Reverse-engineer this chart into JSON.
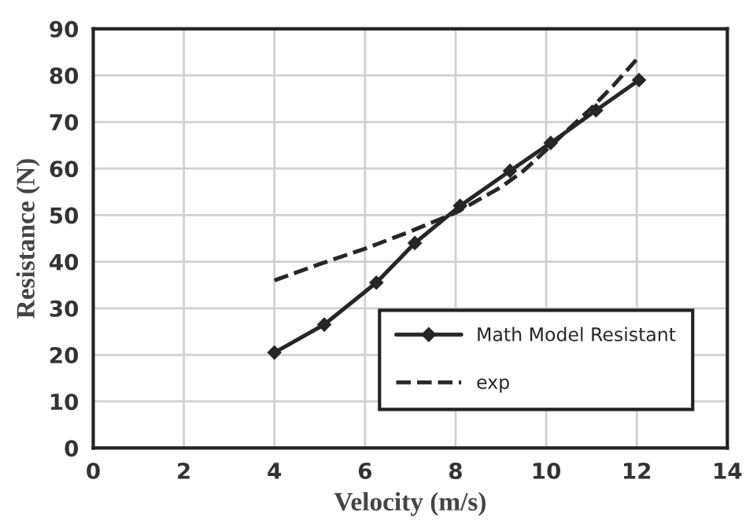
{
  "chart_data": {
    "type": "line",
    "xlabel": "Velocity (m/s)",
    "ylabel": "Resistance (N)",
    "xlim": [
      0,
      14
    ],
    "xticks": [
      0,
      2,
      4,
      6,
      8,
      10,
      12,
      14
    ],
    "ylim": [
      0,
      90
    ],
    "yticks": [
      0,
      10,
      20,
      30,
      40,
      50,
      60,
      70,
      80,
      90
    ],
    "grid": true,
    "legend": "bottom right",
    "series": [
      {
        "name": "Math Model Resistant",
        "color": "#262626",
        "marker": "diamond",
        "line_style": "solid",
        "x": [
          4,
          5.1,
          6.25,
          7.1,
          8.1,
          9.2,
          10.1,
          11.1,
          12.05
        ],
        "values": [
          20.5,
          26.5,
          35.5,
          44,
          52,
          59.5,
          65.5,
          72.5,
          79
        ]
      },
      {
        "name": "exp",
        "color": "#262626",
        "marker": "none",
        "line_style": "dashed",
        "x": [
          4,
          5,
          6,
          7,
          7.5,
          8,
          9,
          9.5,
          10,
          10.5,
          11,
          11.5,
          12.05
        ],
        "values": [
          36,
          39.5,
          42.8,
          46.5,
          48.5,
          50.5,
          56,
          59.5,
          64,
          68.5,
          73,
          78,
          84
        ]
      }
    ]
  }
}
